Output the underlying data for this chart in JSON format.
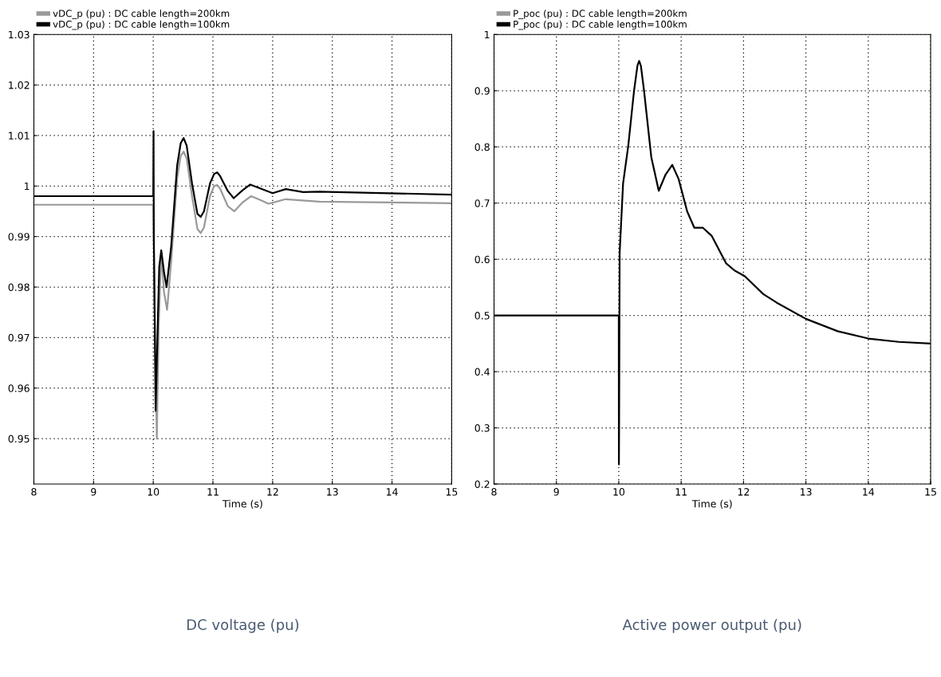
{
  "chart_data": [
    {
      "type": "line",
      "title": "DC voltage (pu)",
      "xlabel": "Time (s)",
      "xlim": [
        8,
        15
      ],
      "xticks": [
        8,
        9,
        10,
        11,
        12,
        13,
        14,
        15
      ],
      "ylim": [
        0.941,
        1.03
      ],
      "yticks": [
        0.95,
        0.96,
        0.97,
        0.98,
        0.99,
        {
          "value": 1.0,
          "label": "1"
        },
        1.01,
        1.02,
        1.03
      ],
      "grid": true,
      "legend": "top left",
      "line_style": "solid",
      "marker": "none",
      "series": [
        {
          "name": "vDC_p (pu) : DC cable length=200km",
          "color": "#999999",
          "x": [
            8,
            10.0,
            10.03,
            10.06,
            10.09,
            10.134,
            10.18,
            10.232,
            10.3,
            10.4,
            10.46,
            10.509,
            10.56,
            10.65,
            10.74,
            10.795,
            10.85,
            10.95,
            11.02,
            11.071,
            11.12,
            11.25,
            11.357,
            11.5,
            11.64,
            11.8,
            11.93,
            12.22,
            12.78,
            15
          ],
          "values": [
            0.9963,
            0.9963,
            0.97,
            0.95,
            0.972,
            0.987,
            0.979,
            0.9755,
            0.985,
            1.0015,
            1.006,
            1.0068,
            1.0055,
            0.998,
            0.9915,
            0.9907,
            0.9918,
            0.998,
            1.0,
            1.0002,
            0.9995,
            0.996,
            0.995,
            0.9968,
            0.998,
            0.9972,
            0.9965,
            0.9974,
            0.9969,
            0.9966
          ]
        },
        {
          "name": "vDC_p (pu) : DC cable length=100km",
          "color": "#000000",
          "x": [
            8,
            10.0,
            10.005,
            10.01,
            10.04,
            10.07,
            10.1,
            10.134,
            10.18,
            10.223,
            10.3,
            10.4,
            10.46,
            10.509,
            10.56,
            10.65,
            10.74,
            10.795,
            10.85,
            10.95,
            11.02,
            11.071,
            11.12,
            11.25,
            11.348,
            11.5,
            11.625,
            11.8,
            12.0,
            12.22,
            12.51,
            12.78,
            15
          ],
          "values": [
            0.998,
            0.998,
            1.0109,
            0.99,
            0.9555,
            0.97,
            0.984,
            0.9873,
            0.983,
            0.98,
            0.988,
            1.004,
            1.0085,
            1.0095,
            1.008,
            1.0005,
            0.9945,
            0.9939,
            0.995,
            1.0005,
            1.0024,
            1.0027,
            1.002,
            0.999,
            0.9976,
            0.9992,
            1.0003,
            0.9995,
            0.9986,
            0.9994,
            0.9988,
            0.9989,
            0.9983
          ]
        }
      ]
    },
    {
      "type": "line",
      "title": "Active power output (pu)",
      "xlabel": "Time (s)",
      "xlim": [
        8,
        15
      ],
      "xticks": [
        8,
        9,
        10,
        11,
        12,
        13,
        14,
        15
      ],
      "ylim": [
        0.2,
        1.0
      ],
      "yticks": [
        0.2,
        0.3,
        0.4,
        0.5,
        0.6,
        0.7,
        0.8,
        0.9,
        {
          "value": 1.0,
          "label": "1"
        }
      ],
      "grid": true,
      "legend": "top left",
      "line_style": "solid",
      "marker": "none",
      "series": [
        {
          "name": "P_poc (pu) : DC cable length=200km",
          "color": "#999999"
        },
        {
          "name": "P_poc (pu) : DC cable length=100km",
          "color": "#000000",
          "x": [
            8,
            10.0,
            10.002,
            10.005,
            10.014,
            10.069,
            10.152,
            10.244,
            10.3,
            10.327,
            10.355,
            10.406,
            10.521,
            10.641,
            10.751,
            10.857,
            10.959,
            11.097,
            11.212,
            11.35,
            11.488,
            11.719,
            11.857,
            12.018,
            12.318,
            12.53,
            13.0,
            13.51,
            14.0,
            14.49,
            15
          ],
          "values": [
            0.5,
            0.5,
            0.235,
            0.3,
            0.611,
            0.735,
            0.802,
            0.899,
            0.945,
            0.953,
            0.944,
            0.899,
            0.782,
            0.722,
            0.751,
            0.768,
            0.743,
            0.685,
            0.656,
            0.656,
            0.642,
            0.593,
            0.58,
            0.57,
            0.538,
            0.523,
            0.494,
            0.472,
            0.459,
            0.453,
            0.45
          ]
        }
      ]
    }
  ]
}
